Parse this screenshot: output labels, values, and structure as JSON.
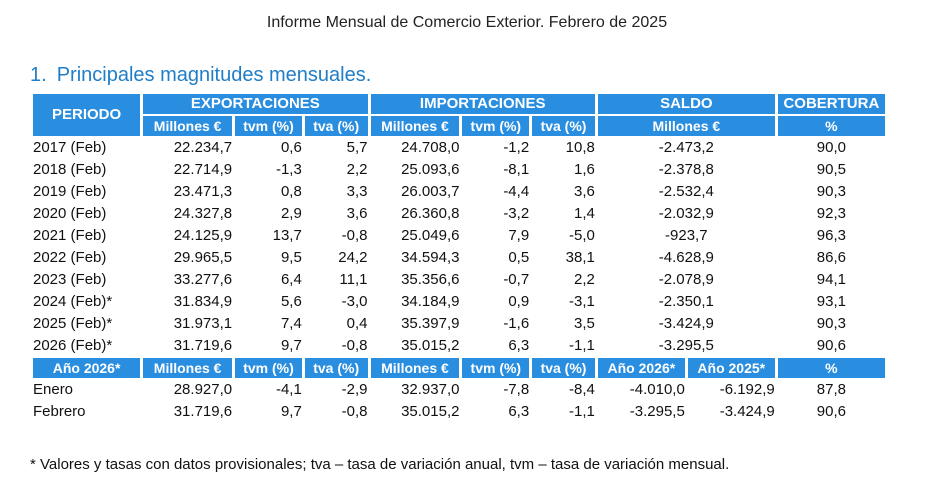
{
  "report_title": "Informe Mensual de Comercio Exterior. Febrero de 2025",
  "section": {
    "number": "1.",
    "title": "Principales magnitudes mensuales."
  },
  "header": {
    "periodo": "PERIODO",
    "exportaciones": "EXPORTACIONES",
    "importaciones": "IMPORTACIONES",
    "saldo": "SALDO",
    "cobertura": "COBERTURA",
    "millones": "Millones €",
    "tvm": "tvm (%)",
    "tva": "tva (%)",
    "pct": "%"
  },
  "annual_rows": [
    {
      "periodo": "2017 (Feb)",
      "exp": "22.234,7",
      "exp_tvm": "0,6",
      "exp_tva": "5,7",
      "imp": "24.708,0",
      "imp_tvm": "-1,2",
      "imp_tva": "10,8",
      "saldo": "-2.473,2",
      "cobertura": "90,0"
    },
    {
      "periodo": "2018 (Feb)",
      "exp": "22.714,9",
      "exp_tvm": "-1,3",
      "exp_tva": "2,2",
      "imp": "25.093,6",
      "imp_tvm": "-8,1",
      "imp_tva": "1,6",
      "saldo": "-2.378,8",
      "cobertura": "90,5"
    },
    {
      "periodo": "2019 (Feb)",
      "exp": "23.471,3",
      "exp_tvm": "0,8",
      "exp_tva": "3,3",
      "imp": "26.003,7",
      "imp_tvm": "-4,4",
      "imp_tva": "3,6",
      "saldo": "-2.532,4",
      "cobertura": "90,3"
    },
    {
      "periodo": "2020 (Feb)",
      "exp": "24.327,8",
      "exp_tvm": "2,9",
      "exp_tva": "3,6",
      "imp": "26.360,8",
      "imp_tvm": "-3,2",
      "imp_tva": "1,4",
      "saldo": "-2.032,9",
      "cobertura": "92,3"
    },
    {
      "periodo": "2021 (Feb)",
      "exp": "24.125,9",
      "exp_tvm": "13,7",
      "exp_tva": "-0,8",
      "imp": "25.049,6",
      "imp_tvm": "7,9",
      "imp_tva": "-5,0",
      "saldo": "-923,7",
      "cobertura": "96,3"
    },
    {
      "periodo": "2022 (Feb)",
      "exp": "29.965,5",
      "exp_tvm": "9,5",
      "exp_tva": "24,2",
      "imp": "34.594,3",
      "imp_tvm": "0,5",
      "imp_tva": "38,1",
      "saldo": "-4.628,9",
      "cobertura": "86,6"
    },
    {
      "periodo": "2023 (Feb)",
      "exp": "33.277,6",
      "exp_tvm": "6,4",
      "exp_tva": "11,1",
      "imp": "35.356,6",
      "imp_tvm": "-0,7",
      "imp_tva": "2,2",
      "saldo": "-2.078,9",
      "cobertura": "94,1"
    },
    {
      "periodo": "2024 (Feb)*",
      "exp": "31.834,9",
      "exp_tvm": "5,6",
      "exp_tva": "-3,0",
      "imp": "34.184,9",
      "imp_tvm": "0,9",
      "imp_tva": "-3,1",
      "saldo": "-2.350,1",
      "cobertura": "93,1"
    },
    {
      "periodo": "2025 (Feb)*",
      "exp": "31.973,1",
      "exp_tvm": "7,4",
      "exp_tva": "0,4",
      "imp": "35.397,9",
      "imp_tvm": "-1,6",
      "imp_tva": "3,5",
      "saldo": "-3.424,9",
      "cobertura": "90,3"
    },
    {
      "periodo": "2026 (Feb)*",
      "exp": "31.719,6",
      "exp_tvm": "9,7",
      "exp_tva": "-0,8",
      "imp": "35.015,2",
      "imp_tvm": "6,3",
      "imp_tva": "-1,1",
      "saldo": "-3.295,5",
      "cobertura": "90,6"
    }
  ],
  "monthly_header": {
    "label": "Año 2026*",
    "millones": "Millones €",
    "tvm": "tvm (%)",
    "tva": "tva (%)",
    "saldo_a": "Año 2026*",
    "saldo_b": "Año 2025*",
    "pct": "%"
  },
  "monthly_rows": [
    {
      "periodo": "Enero",
      "exp": "28.927,0",
      "exp_tvm": "-4,1",
      "exp_tva": "-2,9",
      "imp": "32.937,0",
      "imp_tvm": "-7,8",
      "imp_tva": "-8,4",
      "saldo_a": "-4.010,0",
      "saldo_b": "-6.192,9",
      "cobertura": "87,8"
    },
    {
      "periodo": "Febrero",
      "exp": "31.719,6",
      "exp_tvm": "9,7",
      "exp_tva": "-0,8",
      "imp": "35.015,2",
      "imp_tvm": "6,3",
      "imp_tva": "-1,1",
      "saldo_a": "-3.295,5",
      "saldo_b": "-3.424,9",
      "cobertura": "90,6"
    }
  ],
  "footnote": "* Valores y tasas con datos provisionales; tva – tasa de variación anual, tvm – tasa de variación mensual.",
  "colors": {
    "header_blue": "#2a8ee0",
    "heading_blue": "#1f7ec8"
  }
}
